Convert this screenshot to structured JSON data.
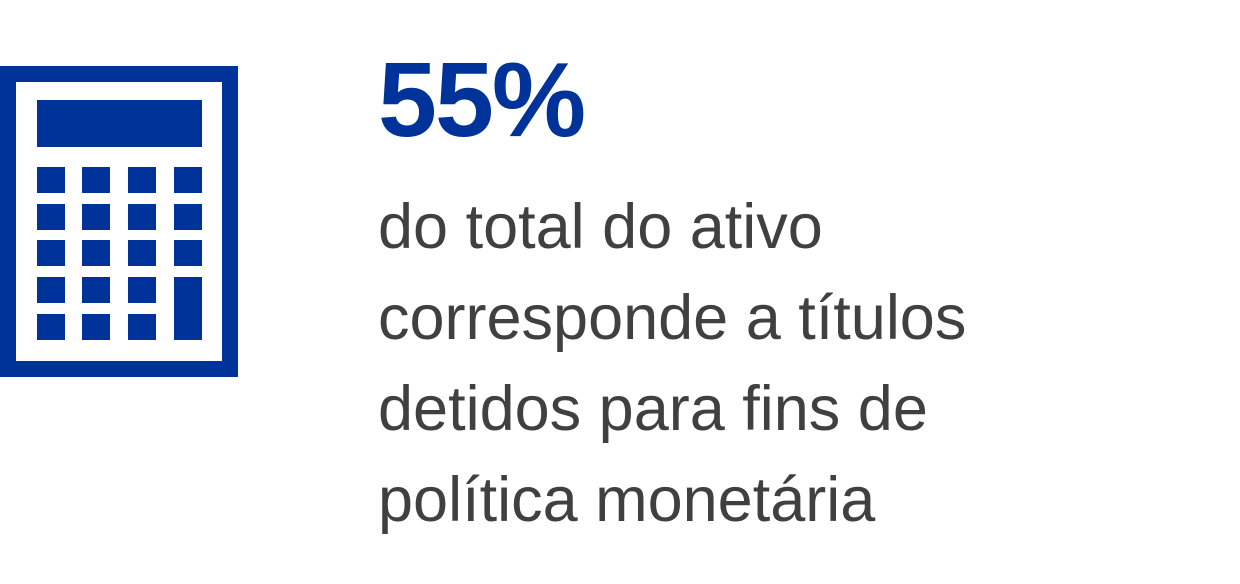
{
  "icon": {
    "name": "calculator-icon",
    "color": "#003399"
  },
  "headline": {
    "value": "55%",
    "color": "#003399"
  },
  "description": {
    "lines": [
      "do total do ativo",
      "corresponde a títulos",
      "detidos para fins de",
      "política monetária"
    ],
    "color": "#404040"
  }
}
